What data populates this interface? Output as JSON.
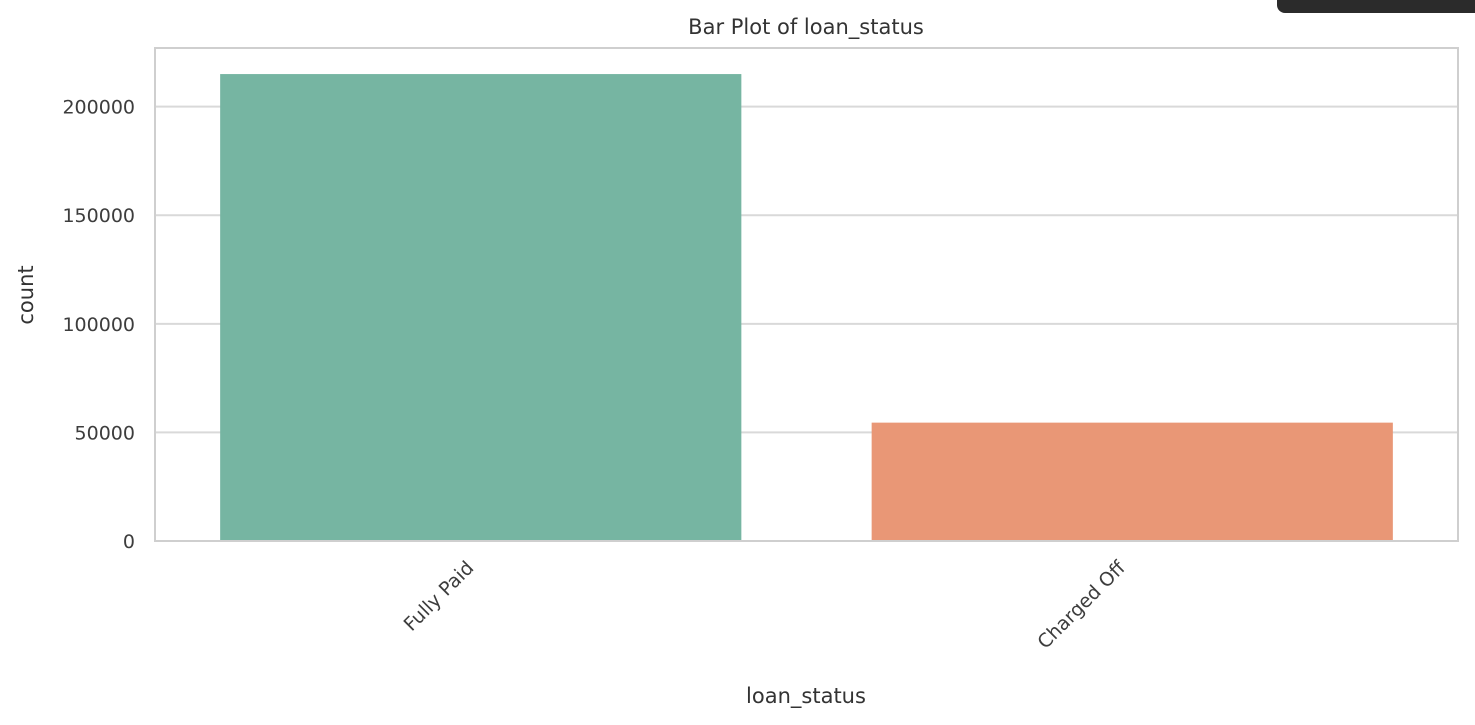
{
  "chart_data": {
    "type": "bar",
    "title": "Bar Plot of loan_status",
    "xlabel": "loan_status",
    "ylabel": "count",
    "categories": [
      "Fully Paid",
      "Charged Off"
    ],
    "values": [
      215000,
      54500
    ],
    "colors": [
      "#76b5a2",
      "#e99776"
    ],
    "ylim": [
      0,
      227000
    ],
    "yticks": [
      0,
      50000,
      100000,
      150000,
      200000
    ],
    "ytick_labels": [
      "0",
      "50000",
      "100000",
      "150000",
      "200000"
    ],
    "grid": true,
    "gridline_color": "#d9d9d9",
    "axes_border_color": "#cfcfcf"
  }
}
